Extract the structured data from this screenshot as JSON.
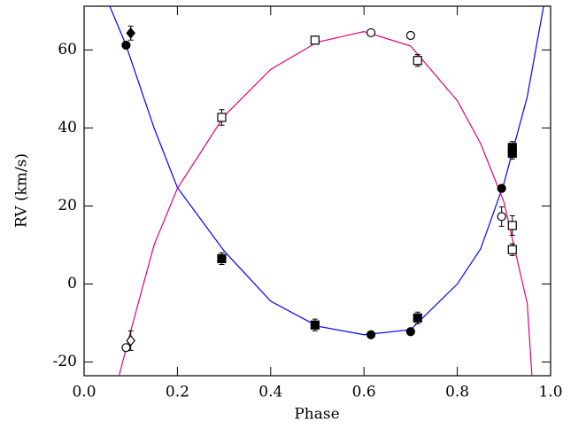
{
  "chart_data": {
    "type": "scatter",
    "x_label": "Phase",
    "y_label": "RV (km/s)",
    "xlim": [
      0,
      1
    ],
    "ylim": [
      -23.5,
      71.2
    ],
    "xticks": [
      {
        "value": 0,
        "label": "0.0"
      },
      0.2,
      0.4,
      0.6,
      0.8,
      {
        "value": 1,
        "label": "1.0"
      }
    ],
    "yticks": [
      -20,
      0,
      20,
      40,
      60
    ],
    "series": [
      {
        "mode": "line",
        "color": "#0000ff",
        "x": [
          0.055,
          0.089,
          0.15,
          0.2,
          0.3,
          0.4,
          0.5,
          0.6,
          0.7,
          0.8,
          0.85,
          0.9,
          0.95,
          0.985
        ],
        "values": [
          71.2,
          61.5,
          40,
          24.7,
          8.5,
          -4.4,
          -10.8,
          -13,
          -11.7,
          0,
          9,
          25.8,
          48,
          71.2
        ]
      },
      {
        "mode": "line",
        "color": "#e0007a",
        "x": [
          0.075,
          0.1,
          0.15,
          0.2,
          0.3,
          0.4,
          0.5,
          0.6,
          0.7,
          0.8,
          0.85,
          0.9,
          0.95,
          0.96
        ],
        "values": [
          -23.5,
          -12,
          10,
          24.5,
          43,
          55,
          62,
          64.7,
          61,
          47,
          36,
          21,
          -5,
          -23.5
        ]
      },
      {
        "mode": "markers",
        "marker": "circle",
        "filled": true,
        "color": "#000000",
        "x": [
          0.09,
          0.615,
          0.7,
          0.895
        ],
        "values": [
          61.2,
          -13,
          -12.2,
          24.5
        ],
        "errors": [
          null,
          null,
          null,
          null
        ]
      },
      {
        "mode": "markers",
        "marker": "circle",
        "filled": false,
        "color": "#000000",
        "x": [
          0.09,
          0.615,
          0.7,
          0.895
        ],
        "values": [
          -16.3,
          64.4,
          63.7,
          17.3
        ],
        "errors": [
          null,
          null,
          null,
          2.5
        ]
      },
      {
        "mode": "markers",
        "marker": "square",
        "filled": true,
        "color": "#000000",
        "x": [
          0.295,
          0.495,
          0.715,
          0.918,
          0.918
        ],
        "values": [
          6.5,
          -10.5,
          -8.7,
          35,
          33.5
        ],
        "errors": [
          1.5,
          1.5,
          1.5,
          1.5,
          1.5
        ]
      },
      {
        "mode": "markers",
        "marker": "square",
        "filled": false,
        "color": "#000000",
        "x": [
          0.295,
          0.495,
          0.715,
          0.918,
          0.918
        ],
        "values": [
          42.7,
          62.5,
          57.3,
          15,
          8.8
        ],
        "errors": [
          2,
          1,
          1.5,
          2.5,
          1.5
        ]
      },
      {
        "mode": "markers",
        "marker": "diamond",
        "filled": true,
        "color": "#000000",
        "x": [
          0.1
        ],
        "values": [
          64.3
        ],
        "errors": [
          1.8
        ]
      },
      {
        "mode": "markers",
        "marker": "diamond",
        "filled": false,
        "color": "#000000",
        "x": [
          0.1
        ],
        "values": [
          -14.5
        ],
        "errors": [
          2.5
        ]
      }
    ]
  }
}
